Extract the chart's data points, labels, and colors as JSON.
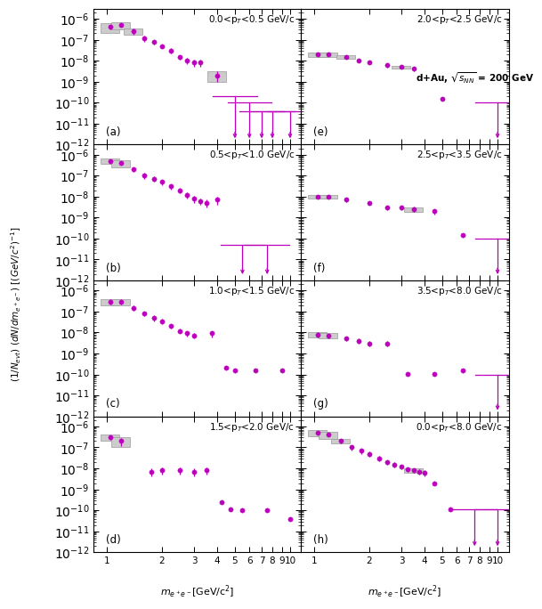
{
  "color": "#BB00BB",
  "gray_color": "#BBBBBB",
  "panel_labels": [
    "(a)",
    "(b)",
    "(c)",
    "(d)",
    "(e)",
    "(f)",
    "(g)",
    "(h)"
  ],
  "pt_labels": [
    "0.0<p$_T$<0.5 GeV/c",
    "0.5<p$_T$<1.0 GeV/c",
    "1.0<p$_T$<1.5 GeV/c",
    "1.5<p$_T$<2.0 GeV/c",
    "2.0<p$_T$<2.5 GeV/c",
    "2.5<p$_T$<3.5 GeV/c",
    "3.5<p$_T$<8.0 GeV/c",
    "0.0<p$_T$<8.0 GeV/c"
  ],
  "annotation_line1": "d+Au, $\\sqrt{s_{NN}}$ = 200 GeV",
  "annotation_line2": "(e)",
  "panels": {
    "a": {
      "x": [
        1.05,
        1.2,
        1.4,
        1.6,
        1.8,
        2.0,
        2.25,
        2.5,
        2.75,
        3.0,
        3.25,
        4.0,
        5.0,
        6.0,
        7.0,
        8.0,
        10.0
      ],
      "y": [
        4e-07,
        5e-07,
        2.5e-07,
        1.2e-07,
        8e-08,
        5e-08,
        3e-08,
        1.5e-08,
        1e-08,
        8e-09,
        8e-09,
        2e-09,
        2e-10,
        1e-10,
        4e-11,
        4e-11,
        4e-11
      ],
      "yerr_lo": [
        1e-07,
        1e-07,
        8e-08,
        4e-08,
        2e-08,
        1e-08,
        8e-09,
        4e-09,
        3e-09,
        3e-09,
        3e-09,
        1e-09,
        null,
        null,
        null,
        null,
        null
      ],
      "yerr_hi": [
        1e-07,
        1e-07,
        8e-08,
        4e-08,
        2e-08,
        1e-08,
        8e-09,
        4e-09,
        3e-09,
        3e-09,
        3e-09,
        1e-09,
        null,
        null,
        null,
        null,
        null
      ],
      "upper_limit": [
        false,
        false,
        false,
        false,
        false,
        false,
        false,
        false,
        false,
        false,
        false,
        false,
        true,
        true,
        true,
        true,
        true
      ],
      "ul_top": [
        null,
        null,
        null,
        null,
        null,
        null,
        null,
        null,
        null,
        null,
        null,
        null,
        2e-10,
        1e-10,
        4e-11,
        4e-11,
        4e-11
      ],
      "ul_bot": [
        null,
        null,
        null,
        null,
        null,
        null,
        null,
        null,
        null,
        null,
        null,
        null,
        1e-12,
        1e-12,
        1e-12,
        1e-12,
        1e-12
      ],
      "sys": [
        true,
        true,
        true,
        false,
        false,
        false,
        false,
        false,
        false,
        false,
        false,
        true,
        false,
        false,
        false,
        false,
        false
      ],
      "sys_half_height": [
        2e-07,
        2e-07,
        8e-08,
        null,
        null,
        null,
        null,
        null,
        null,
        null,
        null,
        1e-09,
        null,
        null,
        null,
        null,
        null
      ]
    },
    "b": {
      "x": [
        1.05,
        1.2,
        1.4,
        1.6,
        1.8,
        2.0,
        2.25,
        2.5,
        2.75,
        3.0,
        3.25,
        3.5,
        4.0,
        5.5,
        7.5
      ],
      "y": [
        5e-07,
        4e-07,
        2e-07,
        1e-07,
        7e-08,
        5e-08,
        3e-08,
        2e-08,
        1.2e-08,
        8e-09,
        6e-09,
        5e-09,
        7e-09,
        4e-11,
        5e-11
      ],
      "yerr_lo": [
        1e-07,
        8e-08,
        5e-08,
        3e-08,
        2e-08,
        1.5e-08,
        8e-09,
        5e-09,
        4e-09,
        3e-09,
        2e-09,
        2e-09,
        3e-09,
        null,
        null
      ],
      "yerr_hi": [
        1e-07,
        8e-08,
        5e-08,
        3e-08,
        2e-08,
        1.5e-08,
        8e-09,
        5e-09,
        4e-09,
        3e-09,
        2e-09,
        2e-09,
        3e-09,
        null,
        null
      ],
      "upper_limit": [
        false,
        false,
        false,
        false,
        false,
        false,
        false,
        false,
        false,
        false,
        false,
        false,
        false,
        true,
        true
      ],
      "ul_top": [
        null,
        null,
        null,
        null,
        null,
        null,
        null,
        null,
        null,
        null,
        null,
        null,
        null,
        5e-11,
        5e-11
      ],
      "ul_bot": [
        null,
        null,
        null,
        null,
        null,
        null,
        null,
        null,
        null,
        null,
        null,
        null,
        null,
        1e-12,
        1e-12
      ],
      "sys": [
        true,
        true,
        false,
        false,
        false,
        false,
        false,
        false,
        false,
        false,
        false,
        false,
        false,
        false,
        false
      ],
      "sys_half_height": [
        1.5e-07,
        1.5e-07,
        null,
        null,
        null,
        null,
        null,
        null,
        null,
        null,
        null,
        null,
        null,
        null,
        null
      ]
    },
    "c": {
      "x": [
        1.05,
        1.2,
        1.4,
        1.6,
        1.8,
        2.0,
        2.25,
        2.5,
        2.75,
        3.0,
        3.75,
        4.5,
        5.0,
        6.5,
        9.0
      ],
      "y": [
        3e-07,
        3e-07,
        1.5e-07,
        8e-08,
        5e-08,
        3.5e-08,
        2e-08,
        1.2e-08,
        9e-09,
        7e-09,
        9e-09,
        2e-10,
        1.5e-10,
        1.5e-10,
        1.5e-10
      ],
      "yerr_lo": [
        8e-08,
        8e-08,
        4e-08,
        2e-08,
        1.5e-08,
        1e-08,
        5e-09,
        3e-09,
        2.5e-09,
        2e-09,
        3e-09,
        null,
        null,
        null,
        null
      ],
      "yerr_hi": [
        8e-08,
        8e-08,
        4e-08,
        2e-08,
        1.5e-08,
        1e-08,
        5e-09,
        3e-09,
        2.5e-09,
        2e-09,
        3e-09,
        null,
        null,
        null,
        null
      ],
      "upper_limit": [
        false,
        false,
        false,
        false,
        false,
        false,
        false,
        false,
        false,
        false,
        false,
        false,
        false,
        false,
        false
      ],
      "ul_top": [
        null,
        null,
        null,
        null,
        null,
        null,
        null,
        null,
        null,
        null,
        null,
        null,
        null,
        null,
        null
      ],
      "ul_bot": [
        null,
        null,
        null,
        null,
        null,
        null,
        null,
        null,
        null,
        null,
        null,
        null,
        null,
        null,
        null
      ],
      "sys": [
        true,
        true,
        false,
        false,
        false,
        false,
        false,
        false,
        false,
        false,
        false,
        false,
        false,
        false,
        false
      ],
      "sys_half_height": [
        1e-07,
        1e-07,
        null,
        null,
        null,
        null,
        null,
        null,
        null,
        null,
        null,
        null,
        null,
        null,
        null
      ]
    },
    "d": {
      "x": [
        1.05,
        1.2,
        1.75,
        2.0,
        2.5,
        3.0,
        3.5,
        4.25,
        4.75,
        5.5,
        7.5,
        10.0
      ],
      "y": [
        3e-07,
        2e-07,
        7e-09,
        8e-09,
        8e-09,
        7e-09,
        8e-09,
        2.5e-10,
        1.1e-10,
        1e-10,
        1e-10,
        4e-11
      ],
      "yerr_lo": [
        8e-08,
        8e-08,
        3e-09,
        3e-09,
        3e-09,
        3e-09,
        3e-09,
        null,
        null,
        null,
        null,
        null
      ],
      "yerr_hi": [
        8e-08,
        8e-08,
        3e-09,
        3e-09,
        3e-09,
        3e-09,
        3e-09,
        null,
        null,
        null,
        null,
        null
      ],
      "upper_limit": [
        false,
        false,
        false,
        false,
        false,
        false,
        false,
        false,
        false,
        false,
        false,
        false
      ],
      "ul_top": [
        null,
        null,
        null,
        null,
        null,
        null,
        null,
        null,
        null,
        null,
        null,
        null
      ],
      "ul_bot": [
        null,
        null,
        null,
        null,
        null,
        null,
        null,
        null,
        null,
        null,
        null,
        null
      ],
      "sys": [
        true,
        true,
        false,
        false,
        false,
        false,
        false,
        false,
        false,
        false,
        false,
        false
      ],
      "sys_half_height": [
        1e-07,
        1e-07,
        null,
        null,
        null,
        null,
        null,
        null,
        null,
        null,
        null,
        null
      ]
    },
    "e": {
      "x": [
        1.05,
        1.2,
        1.5,
        1.75,
        2.0,
        2.5,
        3.0,
        3.5,
        5.0,
        10.0
      ],
      "y": [
        2e-08,
        2e-08,
        1.5e-08,
        1e-08,
        8e-09,
        6e-09,
        5e-09,
        4e-09,
        1.5e-10,
        1e-10
      ],
      "yerr_lo": [
        3e-09,
        3e-09,
        2e-09,
        2e-09,
        1.5e-09,
        1.2e-09,
        1e-09,
        1e-09,
        null,
        null
      ],
      "yerr_hi": [
        3e-09,
        3e-09,
        2e-09,
        2e-09,
        1.5e-09,
        1.2e-09,
        1e-09,
        1e-09,
        null,
        null
      ],
      "upper_limit": [
        false,
        false,
        false,
        false,
        false,
        false,
        false,
        false,
        false,
        true
      ],
      "ul_top": [
        null,
        null,
        null,
        null,
        null,
        null,
        null,
        null,
        null,
        1e-10
      ],
      "ul_bot": [
        null,
        null,
        null,
        null,
        null,
        null,
        null,
        null,
        null,
        1e-12
      ],
      "sys": [
        true,
        true,
        true,
        false,
        false,
        false,
        true,
        false,
        false,
        false
      ],
      "sys_half_height": [
        5e-09,
        5e-09,
        3e-09,
        null,
        null,
        null,
        8e-10,
        null,
        null,
        null
      ]
    },
    "f": {
      "x": [
        1.05,
        1.2,
        1.5,
        2.0,
        2.5,
        3.0,
        3.5,
        4.5,
        6.5,
        10.0
      ],
      "y": [
        1e-08,
        1e-08,
        7e-09,
        5e-09,
        3e-09,
        3e-09,
        2.5e-09,
        2e-09,
        1.5e-10,
        1e-10
      ],
      "yerr_lo": [
        2e-09,
        2e-09,
        1.5e-09,
        1e-09,
        8e-10,
        8e-10,
        7e-10,
        6e-10,
        null,
        null
      ],
      "yerr_hi": [
        2e-09,
        2e-09,
        1.5e-09,
        1e-09,
        8e-10,
        8e-10,
        7e-10,
        6e-10,
        null,
        null
      ],
      "upper_limit": [
        false,
        false,
        false,
        false,
        false,
        false,
        false,
        false,
        false,
        true
      ],
      "ul_top": [
        null,
        null,
        null,
        null,
        null,
        null,
        null,
        null,
        null,
        1e-10
      ],
      "ul_bot": [
        null,
        null,
        null,
        null,
        null,
        null,
        null,
        null,
        null,
        1e-12
      ],
      "sys": [
        true,
        true,
        false,
        false,
        false,
        false,
        true,
        false,
        false,
        false
      ],
      "sys_half_height": [
        2e-09,
        2e-09,
        null,
        null,
        null,
        null,
        6e-10,
        null,
        null,
        null
      ]
    },
    "g": {
      "x": [
        1.05,
        1.2,
        1.5,
        1.75,
        2.0,
        2.5,
        3.25,
        4.5,
        6.5,
        10.0
      ],
      "y": [
        8e-09,
        7e-09,
        5e-09,
        4e-09,
        3e-09,
        3e-09,
        1.1e-10,
        1.1e-10,
        1.5e-10,
        1e-10
      ],
      "yerr_lo": [
        2e-09,
        1.5e-09,
        1e-09,
        1e-09,
        8e-10,
        8e-10,
        null,
        null,
        null,
        null
      ],
      "yerr_hi": [
        2e-09,
        1.5e-09,
        1e-09,
        1e-09,
        8e-10,
        8e-10,
        null,
        null,
        null,
        null
      ],
      "upper_limit": [
        false,
        false,
        false,
        false,
        false,
        false,
        false,
        false,
        false,
        true
      ],
      "ul_top": [
        null,
        null,
        null,
        null,
        null,
        null,
        null,
        null,
        null,
        1e-10
      ],
      "ul_bot": [
        null,
        null,
        null,
        null,
        null,
        null,
        null,
        null,
        null,
        1e-12
      ],
      "sys": [
        true,
        true,
        false,
        false,
        false,
        false,
        false,
        false,
        false,
        false
      ],
      "sys_half_height": [
        2e-09,
        2e-09,
        null,
        null,
        null,
        null,
        null,
        null,
        null,
        null
      ]
    },
    "h": {
      "x": [
        1.05,
        1.2,
        1.4,
        1.6,
        1.8,
        2.0,
        2.25,
        2.5,
        2.75,
        3.0,
        3.25,
        3.5,
        3.75,
        4.0,
        4.5,
        5.5,
        7.5,
        10.0
      ],
      "y": [
        5e-07,
        4e-07,
        2e-07,
        1e-07,
        7e-08,
        5e-08,
        3e-08,
        2e-08,
        1.5e-08,
        1.2e-08,
        9e-09,
        8e-09,
        7e-09,
        6e-09,
        2e-09,
        1.1e-10,
        1.1e-10,
        1.1e-10
      ],
      "yerr_lo": [
        8e-08,
        6e-08,
        5e-08,
        3e-08,
        2e-08,
        1.5e-08,
        8e-09,
        5e-09,
        4e-09,
        3e-09,
        2.5e-09,
        2e-09,
        2e-09,
        2e-09,
        null,
        null,
        null,
        null
      ],
      "yerr_hi": [
        8e-08,
        6e-08,
        5e-08,
        3e-08,
        2e-08,
        1.5e-08,
        8e-09,
        5e-09,
        4e-09,
        3e-09,
        2.5e-09,
        2e-09,
        2e-09,
        2e-09,
        null,
        null,
        null,
        null
      ],
      "upper_limit": [
        false,
        false,
        false,
        false,
        false,
        false,
        false,
        false,
        false,
        false,
        false,
        false,
        false,
        false,
        false,
        false,
        true,
        true
      ],
      "ul_top": [
        null,
        null,
        null,
        null,
        null,
        null,
        null,
        null,
        null,
        null,
        null,
        null,
        null,
        null,
        null,
        null,
        1.1e-10,
        1.1e-10
      ],
      "ul_bot": [
        null,
        null,
        null,
        null,
        null,
        null,
        null,
        null,
        null,
        null,
        null,
        null,
        null,
        null,
        null,
        null,
        1e-12,
        1e-12
      ],
      "sys": [
        true,
        true,
        true,
        false,
        false,
        false,
        false,
        false,
        false,
        false,
        false,
        true,
        false,
        false,
        false,
        false,
        false,
        false
      ],
      "sys_half_height": [
        1.5e-07,
        1.5e-07,
        5e-08,
        null,
        null,
        null,
        null,
        null,
        null,
        null,
        null,
        2e-09,
        null,
        null,
        null,
        null,
        null,
        null
      ]
    }
  }
}
